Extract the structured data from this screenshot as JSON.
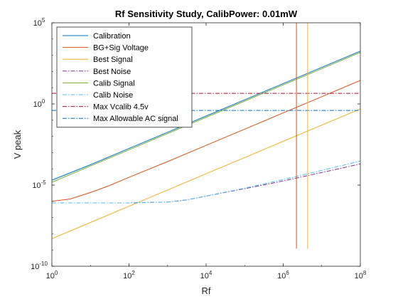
{
  "chart_data": {
    "type": "line",
    "title": "Rf Sensitivity Study, CalibPower: 0.01mW",
    "xlabel": "Rf",
    "ylabel": "V peak",
    "xscale": "log",
    "yscale": "log",
    "xlim": [
      1,
      100000000
    ],
    "ylim": [
      1e-10,
      100000
    ],
    "xticks": [
      {
        "base": "10",
        "exp": "0"
      },
      {
        "base": "10",
        "exp": "2"
      },
      {
        "base": "10",
        "exp": "4"
      },
      {
        "base": "10",
        "exp": "6"
      },
      {
        "base": "10",
        "exp": "8"
      }
    ],
    "yticks": [
      {
        "base": "10",
        "exp": "-10"
      },
      {
        "base": "10",
        "exp": "-5"
      },
      {
        "base": "10",
        "exp": "0"
      },
      {
        "base": "10",
        "exp": "5"
      }
    ],
    "grid": false,
    "legend_position": "top-left",
    "series": [
      {
        "name": "Calibration",
        "color": "#0072BD",
        "dash": "solid",
        "x": [
          1,
          10,
          100,
          1000,
          10000,
          100000,
          1000000,
          10000000,
          100000000
        ],
        "y": [
          2e-05,
          0.00018,
          0.0018,
          0.018,
          0.18,
          1.8,
          18,
          180,
          1800
        ]
      },
      {
        "name": "BG+Sig Voltage",
        "color": "#D95319",
        "dash": "solid",
        "x": [
          1,
          3,
          10,
          30,
          100,
          1000,
          10000,
          100000,
          1000000,
          10000000,
          100000000
        ],
        "y": [
          1e-06,
          1.4e-06,
          3.5e-06,
          9e-06,
          3e-05,
          0.00028,
          0.0028,
          0.028,
          0.28,
          2.8,
          28
        ]
      },
      {
        "name": "Best Signal",
        "color": "#EDB120",
        "dash": "solid",
        "x": [
          1,
          10,
          100,
          1000,
          10000,
          100000,
          1000000,
          10000000,
          100000000
        ],
        "y": [
          5e-09,
          5e-08,
          5e-07,
          5e-06,
          5e-05,
          0.0005,
          0.005,
          0.05,
          0.5
        ]
      },
      {
        "name": "Best Noise",
        "color": "#7E2F8E",
        "dash": "dashdot",
        "x": [
          1,
          10,
          100,
          1000,
          3000,
          10000,
          30000,
          100000,
          1000000,
          10000000,
          100000000
        ],
        "y": [
          8e-07,
          8e-07,
          8e-07,
          9e-07,
          1.2e-06,
          2.1e-06,
          3.5e-06,
          6e-06,
          1.8e-05,
          6e-05,
          0.0002
        ]
      },
      {
        "name": "Calib Signal",
        "color": "#77AC30",
        "dash": "solid",
        "x": [
          1,
          10,
          100,
          1000,
          10000,
          100000,
          1000000,
          10000000,
          100000000
        ],
        "y": [
          1.5e-05,
          0.00015,
          0.0015,
          0.015,
          0.15,
          1.5,
          15,
          150,
          1500
        ]
      },
      {
        "name": "Calib Noise",
        "color": "#4DBEEE",
        "dash": "dashdot",
        "x": [
          1,
          10,
          100,
          1000,
          3000,
          10000,
          30000,
          100000,
          1000000,
          10000000,
          100000000
        ],
        "y": [
          8e-07,
          8e-07,
          8e-07,
          9e-07,
          1.2e-06,
          2.1e-06,
          3.6e-06,
          6.5e-06,
          2.2e-05,
          8e-05,
          0.0003
        ]
      },
      {
        "name": "Max Vcalib 4.5v",
        "color": "#A2142F",
        "dash": "dashdot",
        "x": [
          1,
          100000000
        ],
        "y": [
          4.5,
          4.5
        ]
      },
      {
        "name": "Max Allowable AC signal",
        "color": "#0072BD",
        "dash": "dashdot",
        "x": [
          1,
          100000000
        ],
        "y": [
          0.4,
          0.4
        ]
      },
      {
        "color": "#D95319",
        "dash": "solid",
        "x": [
          2200000,
          2200000
        ],
        "y": [
          1.2e-09,
          100000
        ]
      },
      {
        "color": "#EDB120",
        "dash": "solid",
        "x": [
          4300000,
          4300000
        ],
        "y": [
          1.2e-09,
          100000
        ]
      }
    ]
  }
}
